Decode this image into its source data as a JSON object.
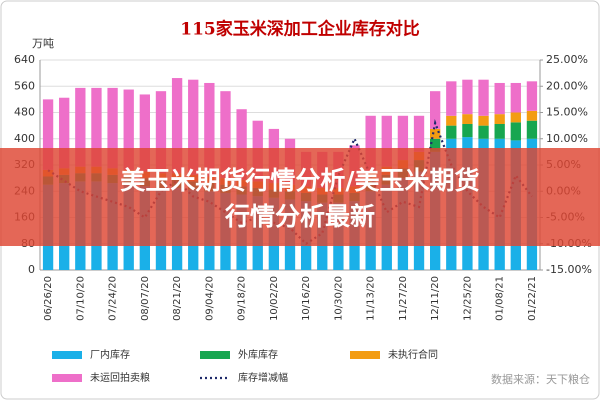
{
  "chart_data": {
    "type": "stacked-bar-line",
    "title": "115家玉米深加工企业库存对比",
    "ylabel": "万吨",
    "source": "数据来源：天下粮仓",
    "banner": [
      "美玉米期货行情分析/美玉米期货行情分析最新"
    ],
    "categories": [
      "06/26/20",
      null,
      "07/10/20",
      null,
      "07/24/20",
      null,
      "08/07/20",
      null,
      "08/21/20",
      null,
      "09/04/20",
      null,
      "09/18/20",
      null,
      "10/02/20",
      null,
      "10/16/20",
      null,
      "10/30/20",
      null,
      "11/13/20",
      null,
      "11/27/20",
      null,
      "12/11/20",
      null,
      "12/25/20",
      null,
      "01/08/21",
      null,
      "01/22/21"
    ],
    "series": [
      {
        "name": "厂内库存",
        "color": "#1ab0e8",
        "values": [
          260,
          265,
          270,
          270,
          265,
          260,
          255,
          250,
          250,
          245,
          240,
          235,
          230,
          225,
          220,
          215,
          210,
          205,
          205,
          210,
          240,
          260,
          280,
          300,
          360,
          400,
          405,
          400,
          400,
          395,
          400
        ]
      },
      {
        "name": "外库库存",
        "color": "#17a650",
        "values": [
          25,
          25,
          25,
          25,
          25,
          25,
          25,
          25,
          25,
          25,
          25,
          25,
          25,
          25,
          25,
          25,
          25,
          25,
          25,
          25,
          30,
          30,
          30,
          35,
          40,
          40,
          40,
          40,
          45,
          55,
          55
        ]
      },
      {
        "name": "未执行合同",
        "color": "#f39c12",
        "values": [
          20,
          20,
          20,
          20,
          20,
          20,
          20,
          20,
          20,
          20,
          20,
          20,
          20,
          20,
          20,
          20,
          20,
          20,
          20,
          20,
          25,
          25,
          25,
          25,
          30,
          30,
          30,
          30,
          30,
          30,
          30
        ]
      },
      {
        "name": "未运回拍卖粮",
        "color": "#ee6fc9",
        "values": [
          215,
          215,
          240,
          240,
          245,
          245,
          235,
          250,
          290,
          290,
          285,
          265,
          215,
          185,
          165,
          140,
          105,
          110,
          110,
          125,
          175,
          155,
          135,
          110,
          115,
          105,
          105,
          110,
          95,
          90,
          90
        ]
      },
      {
        "name": "库存增减幅",
        "color": "#1f2a6b",
        "axis": "y2",
        "values": [
          4,
          2,
          0,
          -1,
          -2,
          -3,
          -5,
          0,
          2,
          -1,
          -2,
          -4,
          -6,
          -5,
          -6,
          -7,
          -10,
          -8,
          3,
          10,
          3,
          -4,
          -2,
          -3,
          13,
          5,
          0,
          -3,
          -5,
          3,
          -1
        ]
      }
    ],
    "ylim": [
      0,
      640
    ],
    "yticks": [
      0,
      80,
      160,
      240,
      320,
      400,
      480,
      560,
      640
    ],
    "y2lim": [
      -15,
      25
    ],
    "y2ticks": [
      {
        "value": -15,
        "label": "-15.00%"
      },
      {
        "value": -10,
        "label": "-10.00%"
      },
      {
        "value": -5,
        "label": "-5.00%"
      },
      {
        "value": 0,
        "label": "0.00%"
      },
      {
        "value": 5,
        "label": "5.00%"
      },
      {
        "value": 10,
        "label": "10.00%"
      },
      {
        "value": 15,
        "label": "15.00%"
      },
      {
        "value": 20,
        "label": "20.00%"
      },
      {
        "value": 25,
        "label": "25.00%"
      }
    ],
    "grid": true
  }
}
